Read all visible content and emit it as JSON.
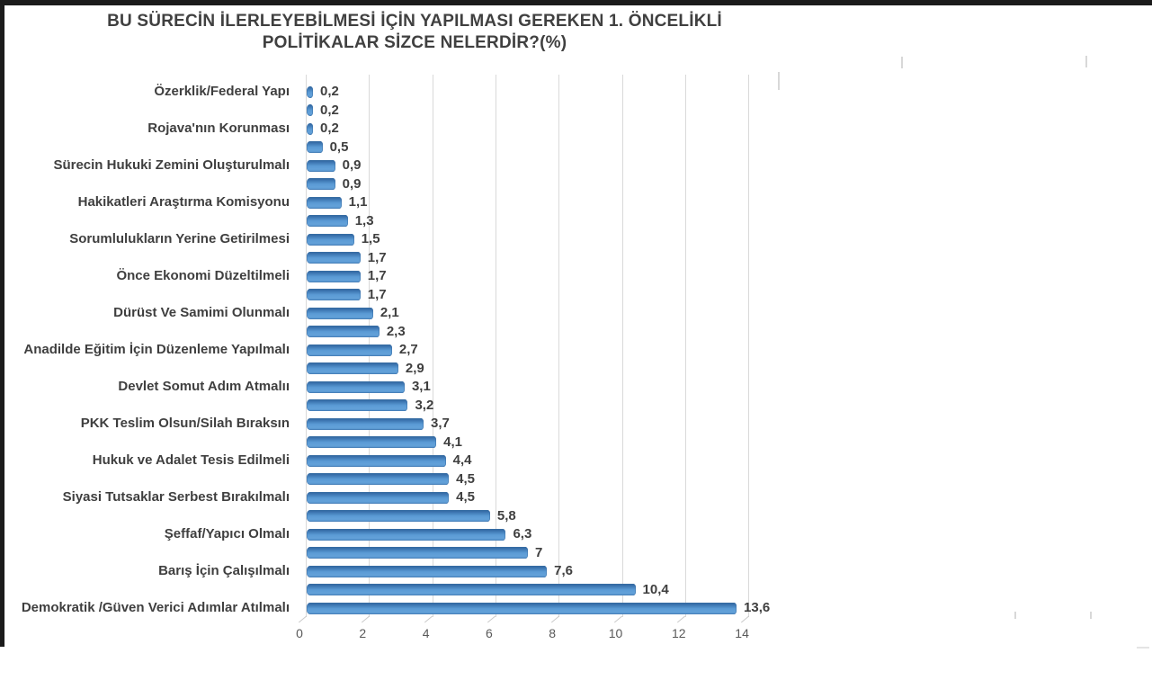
{
  "page": {
    "background": "#ffffff",
    "frame_border_color": "#1b1b1b"
  },
  "chart_data": {
    "type": "bar",
    "orientation": "horizontal",
    "title": "BU SÜRECİN İLERLEYEBİLMESİ İÇİN YAPILMASI GEREKEN 1. ÖNCELİKLİ POLİTİKALAR SİZCE NELERDİR?(%)",
    "title_lines": [
      "BU SÜRECİN İLERLEYEBİLMESİ İÇİN YAPILMASI GEREKEN 1. ÖNCELİKLİ",
      "POLİTİKALAR SİZCE NELERDİR?(%)"
    ],
    "xlabel": "",
    "ylabel": "",
    "xlim": [
      0,
      14
    ],
    "x_ticks": [
      "0",
      "2",
      "4",
      "6",
      "8",
      "10",
      "12",
      "14"
    ],
    "grid": true,
    "legend": false,
    "bar_color": "#5b9bd5",
    "bar_edge_color": "#3a6ea5",
    "label_color": "#3f3f3f",
    "tick_label_color": "#595959",
    "gridline_color": "#d9d9d9",
    "rows": [
      {
        "label": "Özerklik/Federal Yapı",
        "value": 0.2,
        "value_label": "0,2"
      },
      {
        "label": "",
        "value": 0.2,
        "value_label": "0,2"
      },
      {
        "label": "Rojava'nın Korunması",
        "value": 0.2,
        "value_label": "0,2"
      },
      {
        "label": "",
        "value": 0.5,
        "value_label": "0,5"
      },
      {
        "label": "Sürecin Hukuki Zemini Oluşturulmalı",
        "value": 0.9,
        "value_label": "0,9"
      },
      {
        "label": "",
        "value": 0.9,
        "value_label": "0,9"
      },
      {
        "label": "Hakikatleri Araştırma Komisyonu",
        "value": 1.1,
        "value_label": "1,1"
      },
      {
        "label": "",
        "value": 1.3,
        "value_label": "1,3"
      },
      {
        "label": "Sorumlulukların Yerine Getirilmesi",
        "value": 1.5,
        "value_label": "1,5"
      },
      {
        "label": "",
        "value": 1.7,
        "value_label": "1,7"
      },
      {
        "label": "Önce Ekonomi Düzeltilmeli",
        "value": 1.7,
        "value_label": "1,7"
      },
      {
        "label": "",
        "value": 1.7,
        "value_label": "1,7"
      },
      {
        "label": "Dürüst Ve Samimi Olunmalı",
        "value": 2.1,
        "value_label": "2,1"
      },
      {
        "label": "",
        "value": 2.3,
        "value_label": "2,3"
      },
      {
        "label": "Anadilde Eğitim İçin Düzenleme Yapılmalı",
        "value": 2.7,
        "value_label": "2,7"
      },
      {
        "label": "",
        "value": 2.9,
        "value_label": "2,9"
      },
      {
        "label": "Devlet Somut Adım Atmalıı",
        "value": 3.1,
        "value_label": "3,1"
      },
      {
        "label": "",
        "value": 3.2,
        "value_label": "3,2"
      },
      {
        "label": "PKK Teslim Olsun/Silah Bıraksın",
        "value": 3.7,
        "value_label": "3,7"
      },
      {
        "label": "",
        "value": 4.1,
        "value_label": "4,1"
      },
      {
        "label": "Hukuk ve Adalet Tesis Edilmeli",
        "value": 4.4,
        "value_label": "4,4"
      },
      {
        "label": "",
        "value": 4.5,
        "value_label": "4,5"
      },
      {
        "label": "Siyasi Tutsaklar Serbest Bırakılmalı",
        "value": 4.5,
        "value_label": "4,5"
      },
      {
        "label": "",
        "value": 5.8,
        "value_label": "5,8"
      },
      {
        "label": "Şeffaf/Yapıcı Olmalı",
        "value": 6.3,
        "value_label": "6,3"
      },
      {
        "label": "",
        "value": 7,
        "value_label": "7"
      },
      {
        "label": "Barış İçin Çalışılmalı",
        "value": 7.6,
        "value_label": "7,6"
      },
      {
        "label": "",
        "value": 10.4,
        "value_label": "10,4"
      },
      {
        "label": "Demokratik /Güven Verici Adımlar Atılmalı",
        "value": 13.6,
        "value_label": "13,6"
      }
    ]
  }
}
